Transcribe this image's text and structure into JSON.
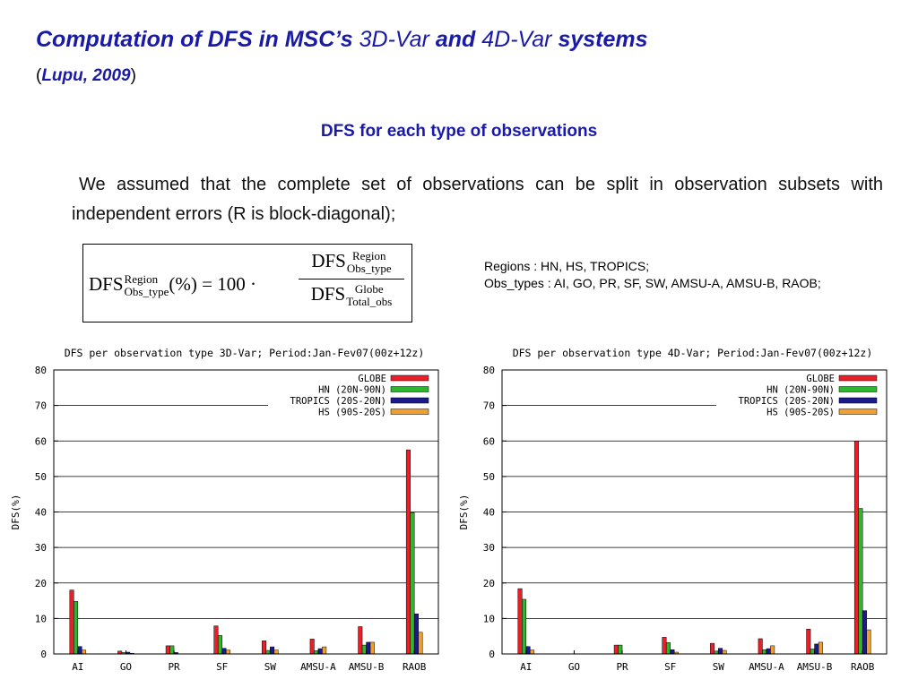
{
  "header": {
    "title_part1": "Computation of DFS in MSC’s ",
    "title_part2": "3D-Var",
    "title_part3": " and ",
    "title_part4": "4D-Var",
    "title_part5": " systems",
    "subtitle_open": "(",
    "subtitle_text": "Lupu, 2009",
    "subtitle_close": ")"
  },
  "section_title": "DFS for each type of observations",
  "paragraph": "We assumed that the complete set of observations can be split in observation subsets with independent errors (R is block-diagonal);",
  "formula": {
    "lhs_base": "DFS",
    "lhs_sup": "Region",
    "lhs_sub": "Obs_type",
    "lhs_tail": "(%) = 100 ·",
    "num_base": "DFS",
    "num_sup": "Region",
    "num_sub": "Obs_type",
    "den_base": "DFS",
    "den_sup": "Globe",
    "den_sub": "Total_obs"
  },
  "notes": {
    "regions": "Regions : HN, HS, TROPICS;",
    "obs_types": "Obs_types : AI, GO, PR, SF, SW, AMSU-A, AMSU-B, RAOB;"
  },
  "chart_data": [
    {
      "type": "bar",
      "title": "DFS per observation type 3D-Var; Period:Jan-Fev07(00z+12z)",
      "xlabel": "",
      "ylabel": "DFS(%)",
      "ylim": [
        0,
        80
      ],
      "yticks": [
        0,
        10,
        20,
        30,
        40,
        50,
        60,
        70,
        80
      ],
      "grid": true,
      "legend_position": "top-right",
      "categories": [
        "AI",
        "GO",
        "PR",
        "SF",
        "SW",
        "AMSU-A",
        "AMSU-B",
        "RAOB"
      ],
      "series": [
        {
          "name": "GLOBE",
          "color": "#e8202a",
          "values": [
            18,
            0.8,
            2.3,
            7.9,
            3.7,
            4.2,
            7.7,
            57.5
          ]
        },
        {
          "name": "HN (20N-90N)",
          "color": "#2fb52f",
          "values": [
            14.8,
            0.4,
            2.3,
            5.2,
            1.0,
            0.9,
            2.5,
            39.8
          ]
        },
        {
          "name": "TROPICS (20S-20N)",
          "color": "#1a1a8c",
          "values": [
            2.1,
            0.5,
            0.4,
            1.6,
            2.0,
            1.5,
            3.3,
            11.3
          ]
        },
        {
          "name": "HS (90S-20S)",
          "color": "#f0a030",
          "values": [
            1.1,
            0.2,
            0,
            1.1,
            1.1,
            2.0,
            3.3,
            6.1
          ]
        }
      ]
    },
    {
      "type": "bar",
      "title": "DFS per observation type 4D-Var; Period:Jan-Fev07(00z+12z)",
      "xlabel": "",
      "ylabel": "DFS(%)",
      "ylim": [
        0,
        80
      ],
      "yticks": [
        0,
        10,
        20,
        30,
        40,
        50,
        60,
        70,
        80
      ],
      "grid": true,
      "legend_position": "top-right",
      "categories": [
        "AI",
        "GO",
        "PR",
        "SF",
        "SW",
        "AMSU-A",
        "AMSU-B",
        "RAOB"
      ],
      "series": [
        {
          "name": "GLOBE",
          "color": "#e8202a",
          "values": [
            18.4,
            0,
            2.5,
            4.7,
            3.0,
            4.3,
            7.0,
            60
          ]
        },
        {
          "name": "HN (20N-90N)",
          "color": "#2fb52f",
          "values": [
            15.4,
            0,
            2.5,
            3.2,
            0.8,
            1.2,
            1.4,
            41
          ]
        },
        {
          "name": "TROPICS (20S-20N)",
          "color": "#1a1a8c",
          "values": [
            2.1,
            0,
            0,
            1.2,
            1.6,
            1.5,
            2.8,
            12.2
          ]
        },
        {
          "name": "HS (90S-20S)",
          "color": "#f0a030",
          "values": [
            1.1,
            0,
            0,
            0.5,
            1.0,
            2.3,
            3.3,
            6.8
          ]
        }
      ]
    }
  ]
}
